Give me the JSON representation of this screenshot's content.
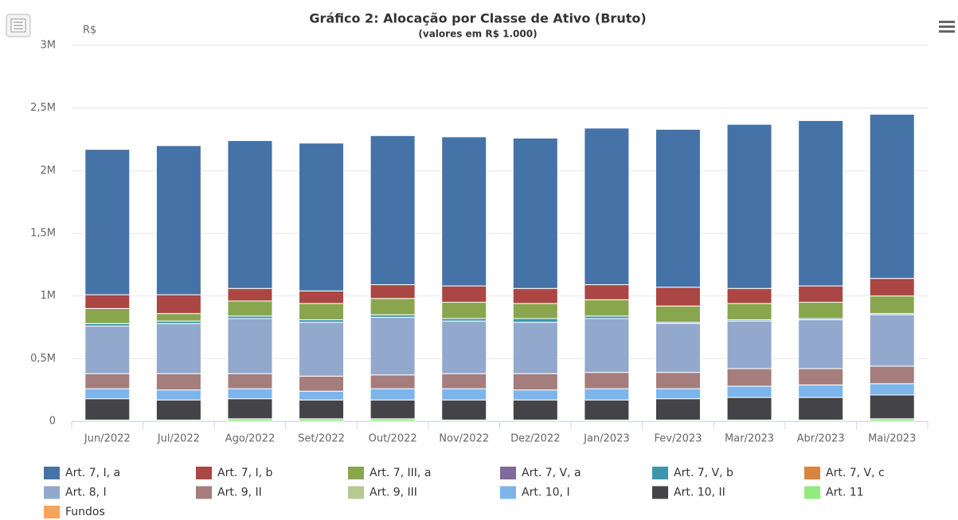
{
  "chart_data": {
    "type": "stacked_bar",
    "title": "Gráfico 2: Alocação por Classe de Ativo (Bruto)",
    "subtitle": "(valores em R$ 1.000)",
    "y_label": "R$",
    "categories": [
      "Jun/2022",
      "Jul/2022",
      "Ago/2022",
      "Set/2022",
      "Out/2022",
      "Nov/2022",
      "Dez/2022",
      "Jan/2023",
      "Fev/2023",
      "Mar/2023",
      "Abr/2023",
      "Mai/2023"
    ],
    "ylim": [
      0,
      3000000
    ],
    "yticks": [
      0,
      {
        "value": 500000,
        "label": "0,5M"
      },
      {
        "value": 1000000,
        "label": "1M"
      },
      {
        "value": 1500000,
        "label": "1,5M"
      },
      {
        "value": 2000000,
        "label": "2M"
      },
      {
        "value": 2500000,
        "label": "2,5M"
      },
      {
        "value": 3000000,
        "label": "3M"
      }
    ],
    "grid": true,
    "legend": "bottom",
    "series": [
      {
        "name": "Art. 7, I, a",
        "color": "#4572a7",
        "values": [
          1160000,
          1190000,
          1180000,
          1180000,
          1190000,
          1190000,
          1200000,
          1250000,
          1260000,
          1310000,
          1320000,
          1310000
        ]
      },
      {
        "name": "Art. 7, I, b",
        "color": "#aa4643",
        "values": [
          110000,
          150000,
          100000,
          100000,
          110000,
          130000,
          120000,
          120000,
          150000,
          120000,
          130000,
          140000
        ]
      },
      {
        "name": "Art. 7, III, a",
        "color": "#89a54e",
        "values": [
          120000,
          60000,
          120000,
          130000,
          130000,
          130000,
          120000,
          130000,
          130000,
          130000,
          130000,
          140000
        ]
      },
      {
        "name": "Art. 7, V, a",
        "color": "#80699b",
        "values": [
          0,
          0,
          0,
          0,
          0,
          0,
          0,
          0,
          0,
          0,
          0,
          0
        ]
      },
      {
        "name": "Art. 7, V, b",
        "color": "#3d96ae",
        "values": [
          20000,
          20000,
          20000,
          20000,
          20000,
          20000,
          30000,
          20000,
          10000,
          10000,
          10000,
          10000
        ]
      },
      {
        "name": "Art. 7, V, c",
        "color": "#db843d",
        "values": [
          0,
          0,
          0,
          0,
          0,
          0,
          0,
          0,
          0,
          0,
          0,
          0
        ]
      },
      {
        "name": "Art. 8, I",
        "color": "#92a8cd",
        "values": [
          380000,
          400000,
          440000,
          430000,
          460000,
          420000,
          410000,
          430000,
          390000,
          380000,
          390000,
          410000
        ]
      },
      {
        "name": "Art. 9, II",
        "color": "#a47d7c",
        "values": [
          120000,
          130000,
          120000,
          120000,
          110000,
          120000,
          130000,
          130000,
          130000,
          140000,
          130000,
          140000
        ]
      },
      {
        "name": "Art. 9, III",
        "color": "#b5ca92",
        "values": [
          0,
          0,
          0,
          0,
          0,
          0,
          0,
          0,
          0,
          0,
          0,
          0
        ]
      },
      {
        "name": "Art. 10, I",
        "color": "#7cb5ec",
        "values": [
          80000,
          80000,
          80000,
          70000,
          90000,
          90000,
          80000,
          90000,
          80000,
          90000,
          100000,
          90000
        ]
      },
      {
        "name": "Art. 10, II",
        "color": "#434348",
        "values": [
          170000,
          160000,
          160000,
          150000,
          150000,
          160000,
          160000,
          160000,
          170000,
          180000,
          180000,
          190000
        ]
      },
      {
        "name": "Art. 11",
        "color": "#90ed7d",
        "values": [
          10000,
          10000,
          20000,
          20000,
          20000,
          10000,
          10000,
          10000,
          10000,
          10000,
          10000,
          20000
        ]
      },
      {
        "name": "Fundos",
        "color": "#f7a35c",
        "values": [
          0,
          0,
          0,
          0,
          0,
          0,
          0,
          0,
          0,
          0,
          0,
          0
        ]
      }
    ]
  }
}
